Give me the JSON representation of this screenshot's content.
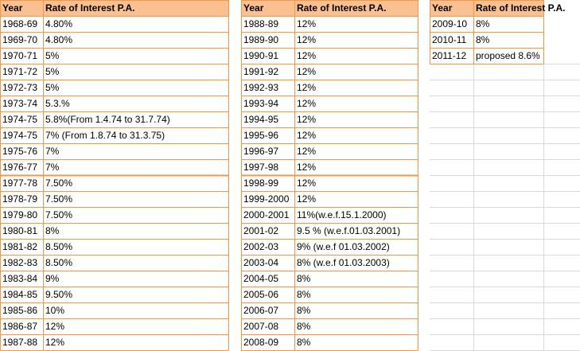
{
  "tables": [
    {
      "headers": [
        "Year",
        "Rate of Interest P.A."
      ],
      "rows": [
        [
          "1968-69",
          "4.80%"
        ],
        [
          "1969-70",
          "4.80%"
        ],
        [
          "1970-71",
          "5%"
        ],
        [
          "1971-72",
          "5%"
        ],
        [
          "1972-73",
          "5%"
        ],
        [
          "1973-74",
          "5.3.%"
        ],
        [
          "1974-75",
          "5.8%(From 1.4.74 to 31.7.74)"
        ],
        [
          "1974-75",
          "7% (From 1.8.74 to 31.3.75)"
        ],
        [
          "1975-76",
          "7%"
        ],
        [
          "1976-77",
          "7%"
        ],
        [
          "1977-78",
          "7.50%"
        ],
        [
          "1978-79",
          "7.50%"
        ],
        [
          "1979-80",
          "7.50%"
        ],
        [
          "1980-81",
          "8%"
        ],
        [
          "1981-82",
          "8.50%"
        ],
        [
          "1982-83",
          "8.50%"
        ],
        [
          "1983-84",
          "9%"
        ],
        [
          "1984-85",
          "9.50%"
        ],
        [
          "1985-86",
          "10%"
        ],
        [
          "1986-87",
          "12%"
        ],
        [
          "1987-88",
          "12%"
        ]
      ]
    },
    {
      "headers": [
        "Year",
        "Rate of Interest P.A."
      ],
      "rows": [
        [
          "1988-89",
          "12%"
        ],
        [
          "1989-90",
          "12%"
        ],
        [
          "1990-91",
          "12%"
        ],
        [
          "1991-92",
          "12%"
        ],
        [
          "1992-93",
          "12%"
        ],
        [
          "1993-94",
          "12%"
        ],
        [
          "1994-95",
          "12%"
        ],
        [
          "1995-96",
          "12%"
        ],
        [
          "1996-97",
          "12%"
        ],
        [
          "1997-98",
          "12%"
        ],
        [
          "1998-99",
          "12%"
        ],
        [
          "1999-2000",
          "12%"
        ],
        [
          "2000-2001",
          "11%(w.e.f.15.1.2000)"
        ],
        [
          "2001-02",
          "9.5 % (w.e.f.01.03.2001)"
        ],
        [
          "2002-03",
          "9% (w.e.f 01.03.2002)"
        ],
        [
          "2003-04",
          "8% (w.e.f 01.03.2003)"
        ],
        [
          "2004-05",
          "8%"
        ],
        [
          "2005-06",
          "8%"
        ],
        [
          "2006-07",
          "8%"
        ],
        [
          "2007-08",
          "8%"
        ],
        [
          "2008-09",
          "8%"
        ]
      ]
    },
    {
      "headers": [
        "Year",
        "Rate of Interest P.A."
      ],
      "rows": [
        [
          "2009-10",
          "8%"
        ],
        [
          "2010-11",
          "8%"
        ],
        [
          "2011-12",
          "proposed 8.6%"
        ]
      ]
    }
  ]
}
